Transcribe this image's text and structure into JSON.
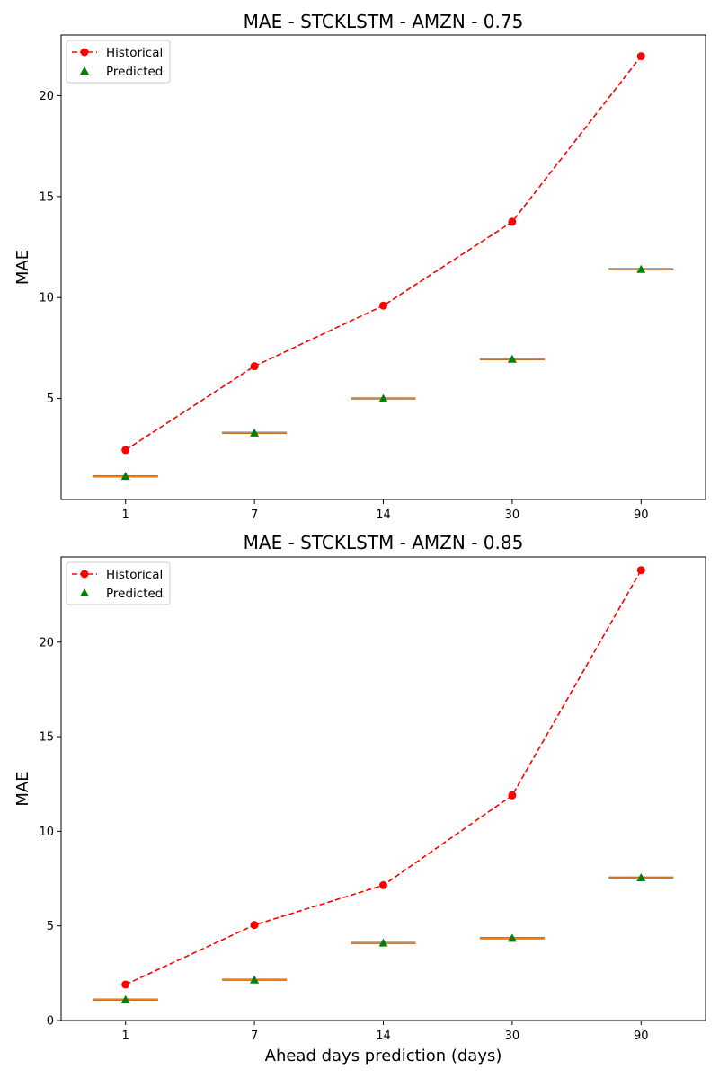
{
  "chart_data": [
    {
      "type": "line",
      "title": "MAE - STCKLSTM - AMZN - 0.75",
      "xlabel": "",
      "ylabel": "MAE",
      "categories": [
        "1",
        "7",
        "14",
        "30",
        "90"
      ],
      "ylim": [
        0,
        23
      ],
      "yticks": [
        5,
        10,
        15,
        20
      ],
      "legend_position": "upper-left",
      "series": [
        {
          "name": "Historical",
          "values": [
            2.45,
            6.6,
            9.6,
            13.75,
            21.95
          ],
          "color": "#ff0000",
          "style": "dashed-line-circle"
        },
        {
          "name": "Predicted",
          "values": [
            1.15,
            3.3,
            5.0,
            6.95,
            11.4
          ],
          "color": "#008000",
          "style": "triangle-marker"
        }
      ],
      "box_medians": [
        1.15,
        3.3,
        5.0,
        6.95,
        11.4
      ],
      "box_color": "#ff7f0e"
    },
    {
      "type": "line",
      "title": "MAE - STCKLSTM - AMZN - 0.85",
      "xlabel": "Ahead days prediction (days)",
      "ylabel": "MAE",
      "categories": [
        "1",
        "7",
        "14",
        "30",
        "90"
      ],
      "ylim": [
        0,
        24.5
      ],
      "yticks": [
        0,
        5,
        10,
        15,
        20
      ],
      "legend_position": "upper-left",
      "series": [
        {
          "name": "Historical",
          "values": [
            1.9,
            5.05,
            7.15,
            11.9,
            23.8
          ],
          "color": "#ff0000",
          "style": "dashed-line-circle"
        },
        {
          "name": "Predicted",
          "values": [
            1.1,
            2.15,
            4.1,
            4.35,
            7.55
          ],
          "color": "#008000",
          "style": "triangle-marker"
        }
      ],
      "box_medians": [
        1.1,
        2.15,
        4.1,
        4.35,
        7.55
      ],
      "box_color": "#ff7f0e"
    }
  ]
}
